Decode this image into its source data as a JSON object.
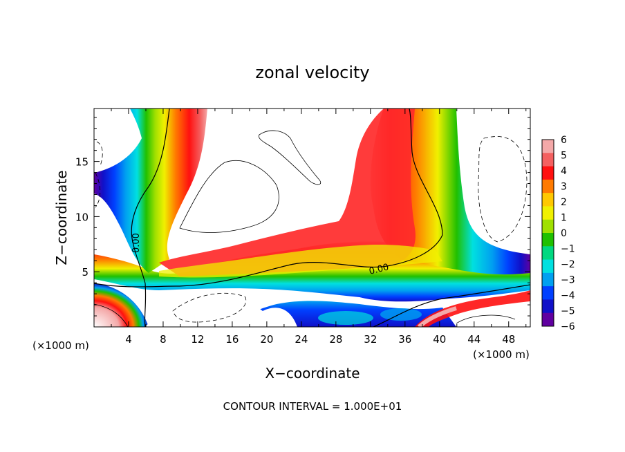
{
  "chart_data": {
    "type": "heatmap",
    "title": "zonal velocity",
    "xlabel": "X−coordinate",
    "ylabel": "Z−coordinate",
    "x_unit_left": "(×1000 m)",
    "x_unit_right": "(×1000 m)",
    "xlim": [
      0,
      50.5
    ],
    "ylim": [
      0,
      19.8
    ],
    "x_ticks": [
      "4",
      "8",
      "12",
      "16",
      "20",
      "24",
      "28",
      "32",
      "36",
      "40",
      "44",
      "48"
    ],
    "y_ticks": [
      "5",
      "10",
      "15"
    ],
    "colorbar_ticks": [
      "6",
      "5",
      "4",
      "3",
      "2",
      "1",
      "0",
      "−1",
      "−2",
      "−3",
      "−4",
      "−5",
      "−6"
    ],
    "colorbar_range": [
      -6,
      6
    ],
    "colors": [
      "#f4a8a8",
      "#f46060",
      "#ff1010",
      "#ff7a00",
      "#ffc800",
      "#f0f000",
      "#a0e000",
      "#20c000",
      "#00d880",
      "#00e0e0",
      "#00a0f0",
      "#0040ff",
      "#1010c8",
      "#6000a0"
    ],
    "contour_labels": [
      "0.00",
      "0.00"
    ],
    "footer": "CONTOUR INTERVAL = 1.000E+01"
  }
}
